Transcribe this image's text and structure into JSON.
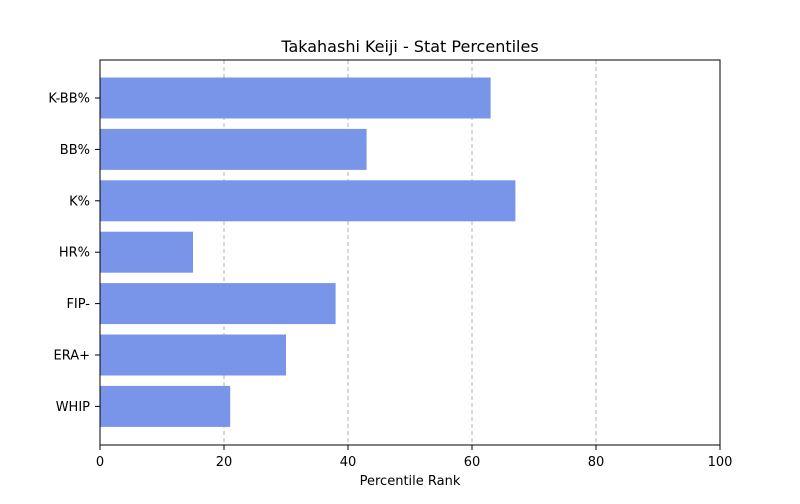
{
  "chart_data": {
    "type": "bar",
    "orientation": "horizontal",
    "title": "Takahashi Keiji - Stat Percentiles",
    "xlabel": "Percentile Rank",
    "ylabel": "",
    "xlim": [
      0,
      100
    ],
    "x_ticks": [
      0,
      20,
      40,
      60,
      80,
      100
    ],
    "categories": [
      "K-BB%",
      "BB%",
      "K%",
      "HR%",
      "FIP-",
      "ERA+",
      "WHIP"
    ],
    "values": [
      63,
      43,
      67,
      15,
      38,
      30,
      21
    ],
    "bar_color": "#7995e9",
    "grid": "x-axis dashed",
    "legend": "none"
  }
}
